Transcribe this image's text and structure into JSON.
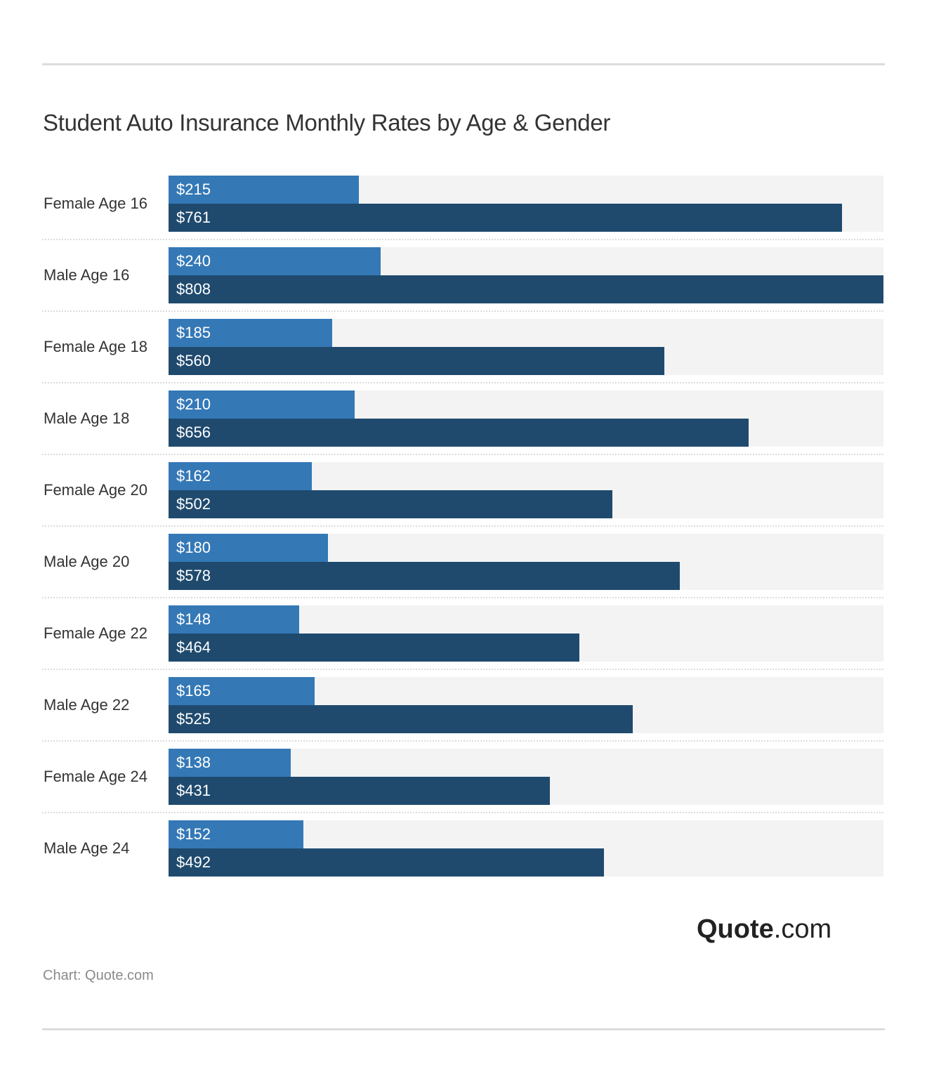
{
  "chart_data": {
    "type": "bar",
    "orientation": "horizontal",
    "title": "Student Auto Insurance Monthly Rates by Age & Gender",
    "xlabel": "",
    "ylabel": "",
    "grid": false,
    "legend": null,
    "xlim": [
      0,
      808
    ],
    "categories": [
      "Female Age 16",
      "Male Age 16",
      "Female Age 18",
      "Male Age 18",
      "Female Age 20",
      "Male Age 20",
      "Female Age 22",
      "Male Age 22",
      "Female Age 24",
      "Male Age 24"
    ],
    "series": [
      {
        "name": "",
        "color": "#3478b6",
        "values": [
          215,
          240,
          185,
          210,
          162,
          180,
          148,
          165,
          138,
          152
        ]
      },
      {
        "name": "",
        "color": "#1f4a6e",
        "values": [
          761,
          808,
          560,
          656,
          502,
          578,
          464,
          525,
          431,
          492
        ]
      }
    ],
    "value_prefix": "$"
  },
  "rows": [
    {
      "label": "Female Age 16",
      "v1": "$215",
      "v2": "$761"
    },
    {
      "label": "Male Age 16",
      "v1": "$240",
      "v2": "$808"
    },
    {
      "label": "Female Age 18",
      "v1": "$185",
      "v2": "$560"
    },
    {
      "label": "Male Age 18",
      "v1": "$210",
      "v2": "$656"
    },
    {
      "label": "Female Age 20",
      "v1": "$162",
      "v2": "$502"
    },
    {
      "label": "Male Age 20",
      "v1": "$180",
      "v2": "$578"
    },
    {
      "label": "Female Age 22",
      "v1": "$148",
      "v2": "$464"
    },
    {
      "label": "Male Age 22",
      "v1": "$165",
      "v2": "$525"
    },
    {
      "label": "Female Age 24",
      "v1": "$138",
      "v2": "$431"
    },
    {
      "label": "Male Age 24",
      "v1": "$152",
      "v2": "$492"
    }
  ],
  "logo": {
    "bold": "Quote",
    "rest": ".com"
  },
  "source": "Chart: Quote.com"
}
